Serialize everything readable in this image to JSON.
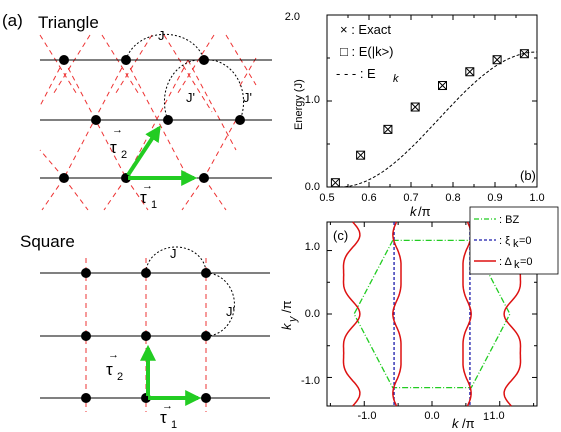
{
  "panel_a": {
    "label": "(a)",
    "triangle_title": "Triangle",
    "square_title": "Square",
    "J": "J",
    "Jp": "J'",
    "tau1": "τ",
    "tau1_sub": "1",
    "tau2": "τ",
    "tau2_sub": "2",
    "vec": "→"
  },
  "chart_data": [
    {
      "type": "scatter",
      "panel_label": "(b)",
      "ylabel": "Energy (J)",
      "xlabel_main": "k",
      "xlabel_sub": "/π",
      "xlim": [
        0.5,
        1.0
      ],
      "ylim": [
        0.0,
        2.0
      ],
      "xticks": [
        "0.5",
        "0.6",
        "0.7",
        "0.8",
        "0.9",
        "1.0"
      ],
      "yticks": [
        "0.0",
        "1.0",
        "2.0"
      ],
      "legend": {
        "exact": "× : Exact",
        "ek_state": "□ : E(|k>)",
        "ek_main": "- - - : E",
        "ek_sub": "k"
      },
      "x": [
        0.52,
        0.58,
        0.645,
        0.71,
        0.775,
        0.84,
        0.905,
        0.97
      ],
      "exact": [
        0.05,
        0.37,
        0.67,
        0.93,
        1.18,
        1.34,
        1.48,
        1.55
      ],
      "variational": [
        0.05,
        0.37,
        0.67,
        0.93,
        1.18,
        1.34,
        1.48,
        1.55
      ],
      "ek_curve": {
        "x0": 0.53,
        "x1": 1.0,
        "ymax": 1.57
      }
    },
    {
      "type": "line",
      "panel_label": "(c)",
      "ylabel_main": "k",
      "ylabel_sub": "y",
      "ylabel_unit": "/π",
      "xlabel_main": "k",
      "xlabel_unit": "/π",
      "xlabel_sup": "1",
      "xticks": [
        "-1.0",
        "0.0",
        "1.0"
      ],
      "yticks": [
        "1.0",
        "0.0",
        "-1.0"
      ],
      "xlim": [
        -1.55,
        1.55
      ],
      "ylim": [
        -1.45,
        1.45
      ],
      "legend": {
        "bz": ": BZ",
        "xi_main": ": ξ",
        "xi_sub": "k",
        "xi_tail": "=0",
        "delta_main": ": Δ",
        "delta_sub": "k",
        "delta_tail": "=0"
      },
      "bz_polygon": [
        [
          -0.58,
          1.16
        ],
        [
          0.58,
          1.16
        ],
        [
          1.15,
          0.0
        ],
        [
          0.58,
          -1.16
        ],
        [
          -0.58,
          -1.16
        ],
        [
          -1.15,
          0.0
        ],
        [
          -0.58,
          1.16
        ]
      ],
      "xi_lines_x": [
        -0.56,
        0.56
      ],
      "colors": {
        "bz": "#22cc22",
        "xi": "#1a1aaa",
        "delta": "#dd1111"
      }
    }
  ]
}
